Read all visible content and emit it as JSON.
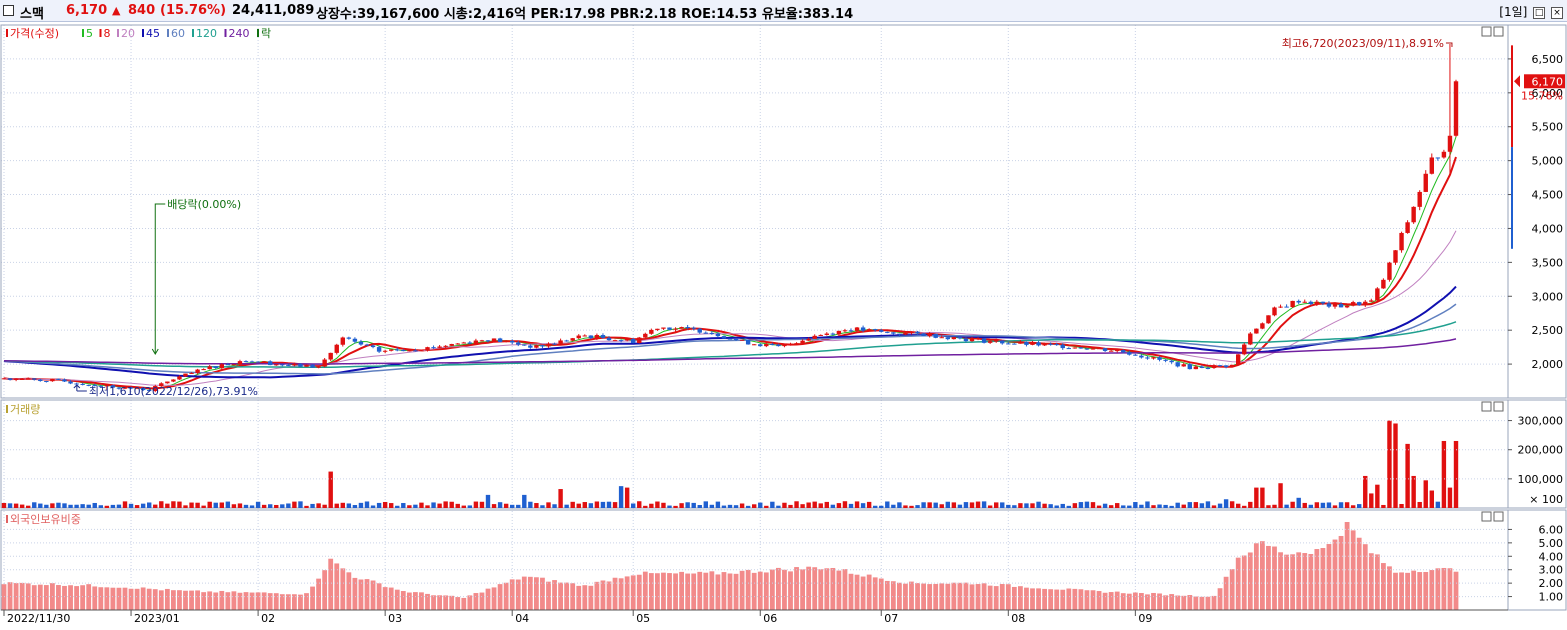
{
  "header": {
    "name": "스맥",
    "price": "6,170",
    "arrow": "▲",
    "change": "840",
    "change_pct": "(15.76%)",
    "volume": "24,411,089",
    "stats": "상장수:39,167,600 시총:2,416억 PER:17.98 PBR:2.18 ROE:14.53 유보율:383.14",
    "period_button": "[1일]",
    "btn_restore": "□",
    "btn_close": "×"
  },
  "price_panel": {
    "legend": [
      {
        "label": "가격(수정)",
        "color": "#e01010"
      },
      {
        "label": "5",
        "color": "#22bb22"
      },
      {
        "label": "8",
        "color": "#e01010"
      },
      {
        "label": "20",
        "color": "#c080c0"
      },
      {
        "label": "45",
        "color": "#1010b0"
      },
      {
        "label": "60",
        "color": "#6080c0"
      },
      {
        "label": "120",
        "color": "#20a090"
      },
      {
        "label": "240",
        "color": "#7020a0"
      },
      {
        "label": "락",
        "color": "#107010"
      }
    ],
    "high_note": "최고6,720(2023/09/11),8.91%",
    "low_note": "최저1,610(2022/12/26),73.91%",
    "dividend_note": "배당락(0.00%)",
    "current_price": "6,170",
    "current_pct": "15.76%",
    "y_ticks": [
      "6,500",
      "6,000",
      "5,500",
      "5,000",
      "4,500",
      "4,000",
      "3,500",
      "3,000",
      "2,500",
      "2,000"
    ]
  },
  "volume_panel": {
    "title": "거래량",
    "y_ticks": [
      "300,000",
      "200,000",
      "100,000",
      "× 100"
    ]
  },
  "foreign_panel": {
    "title": "외국인보유비중",
    "y_ticks": [
      "6.00",
      "5.00",
      "4.00",
      "3.00",
      "2.00",
      "1.00"
    ]
  },
  "x_axis": {
    "labels": [
      "2022/11/30",
      "2023/01",
      "02",
      "03",
      "04",
      "05",
      "06",
      "07",
      "08",
      "09"
    ]
  },
  "colors": {
    "up": "#e01010",
    "down": "#1f5fd0",
    "foreign": "#f28a8a"
  },
  "chart_data": [
    {
      "type": "candlestick",
      "title": "가격(수정)",
      "ylim": [
        1500,
        7000
      ],
      "start": 1750,
      "high": {
        "value": 6720,
        "date": "2023/09/11"
      },
      "low": {
        "value": 1610,
        "date": "2022/12/26"
      },
      "last": 6170,
      "closes_anchors": [
        [
          0,
          1790
        ],
        [
          8,
          1760
        ],
        [
          14,
          1700
        ],
        [
          20,
          1650
        ],
        [
          24,
          1620
        ],
        [
          28,
          1780
        ],
        [
          34,
          1950
        ],
        [
          40,
          2060
        ],
        [
          46,
          1990
        ],
        [
          52,
          1960
        ],
        [
          56,
          2380
        ],
        [
          62,
          2190
        ],
        [
          70,
          2240
        ],
        [
          80,
          2370
        ],
        [
          88,
          2250
        ],
        [
          96,
          2420
        ],
        [
          104,
          2340
        ],
        [
          108,
          2550
        ],
        [
          116,
          2490
        ],
        [
          122,
          2330
        ],
        [
          128,
          2250
        ],
        [
          134,
          2420
        ],
        [
          140,
          2520
        ],
        [
          146,
          2460
        ],
        [
          152,
          2440
        ],
        [
          160,
          2360
        ],
        [
          168,
          2300
        ],
        [
          176,
          2260
        ],
        [
          184,
          2200
        ],
        [
          190,
          2080
        ],
        [
          196,
          1950
        ],
        [
          203,
          1980
        ],
        [
          206,
          2450
        ],
        [
          210,
          2800
        ],
        [
          214,
          2940
        ],
        [
          220,
          2850
        ],
        [
          226,
          2920
        ],
        [
          228,
          3250
        ],
        [
          232,
          4100
        ],
        [
          236,
          5000
        ],
        [
          239,
          5300
        ],
        [
          240,
          6170
        ]
      ],
      "ma_lengths": [
        5,
        8,
        20,
        45,
        60,
        120,
        240
      ]
    },
    {
      "type": "bar",
      "title": "거래량",
      "ylim": [
        0,
        350000
      ],
      "base": 18000,
      "spikes": [
        [
          54,
          125000
        ],
        [
          80,
          45000
        ],
        [
          86,
          45000
        ],
        [
          92,
          65000
        ],
        [
          102,
          75000
        ],
        [
          103,
          70000
        ],
        [
          202,
          30000
        ],
        [
          207,
          70000
        ],
        [
          208,
          70000
        ],
        [
          211,
          85000
        ],
        [
          214,
          35000
        ],
        [
          225,
          110000
        ],
        [
          226,
          50000
        ],
        [
          227,
          80000
        ],
        [
          229,
          300000
        ],
        [
          230,
          290000
        ],
        [
          232,
          220000
        ],
        [
          233,
          110000
        ],
        [
          235,
          95000
        ],
        [
          236,
          60000
        ],
        [
          238,
          230000
        ],
        [
          239,
          70000
        ],
        [
          240,
          230000
        ]
      ]
    },
    {
      "type": "bar",
      "title": "외국인보유비중",
      "ylim": [
        0,
        7
      ],
      "anchors": [
        [
          0,
          2.0
        ],
        [
          10,
          1.9
        ],
        [
          20,
          1.7
        ],
        [
          30,
          1.4
        ],
        [
          40,
          1.3
        ],
        [
          50,
          1.2
        ],
        [
          54,
          3.7
        ],
        [
          58,
          2.5
        ],
        [
          66,
          1.4
        ],
        [
          76,
          0.9
        ],
        [
          86,
          2.5
        ],
        [
          96,
          1.8
        ],
        [
          104,
          2.7
        ],
        [
          116,
          2.7
        ],
        [
          128,
          3.0
        ],
        [
          136,
          3.2
        ],
        [
          142,
          2.6
        ],
        [
          150,
          2.0
        ],
        [
          160,
          2.0
        ],
        [
          170,
          1.7
        ],
        [
          180,
          1.4
        ],
        [
          190,
          1.2
        ],
        [
          200,
          1.0
        ],
        [
          204,
          3.9
        ],
        [
          208,
          5.0
        ],
        [
          212,
          4.2
        ],
        [
          218,
          4.5
        ],
        [
          222,
          6.3
        ],
        [
          226,
          4.3
        ],
        [
          230,
          2.8
        ],
        [
          234,
          3.0
        ],
        [
          240,
          3.0
        ]
      ]
    }
  ]
}
